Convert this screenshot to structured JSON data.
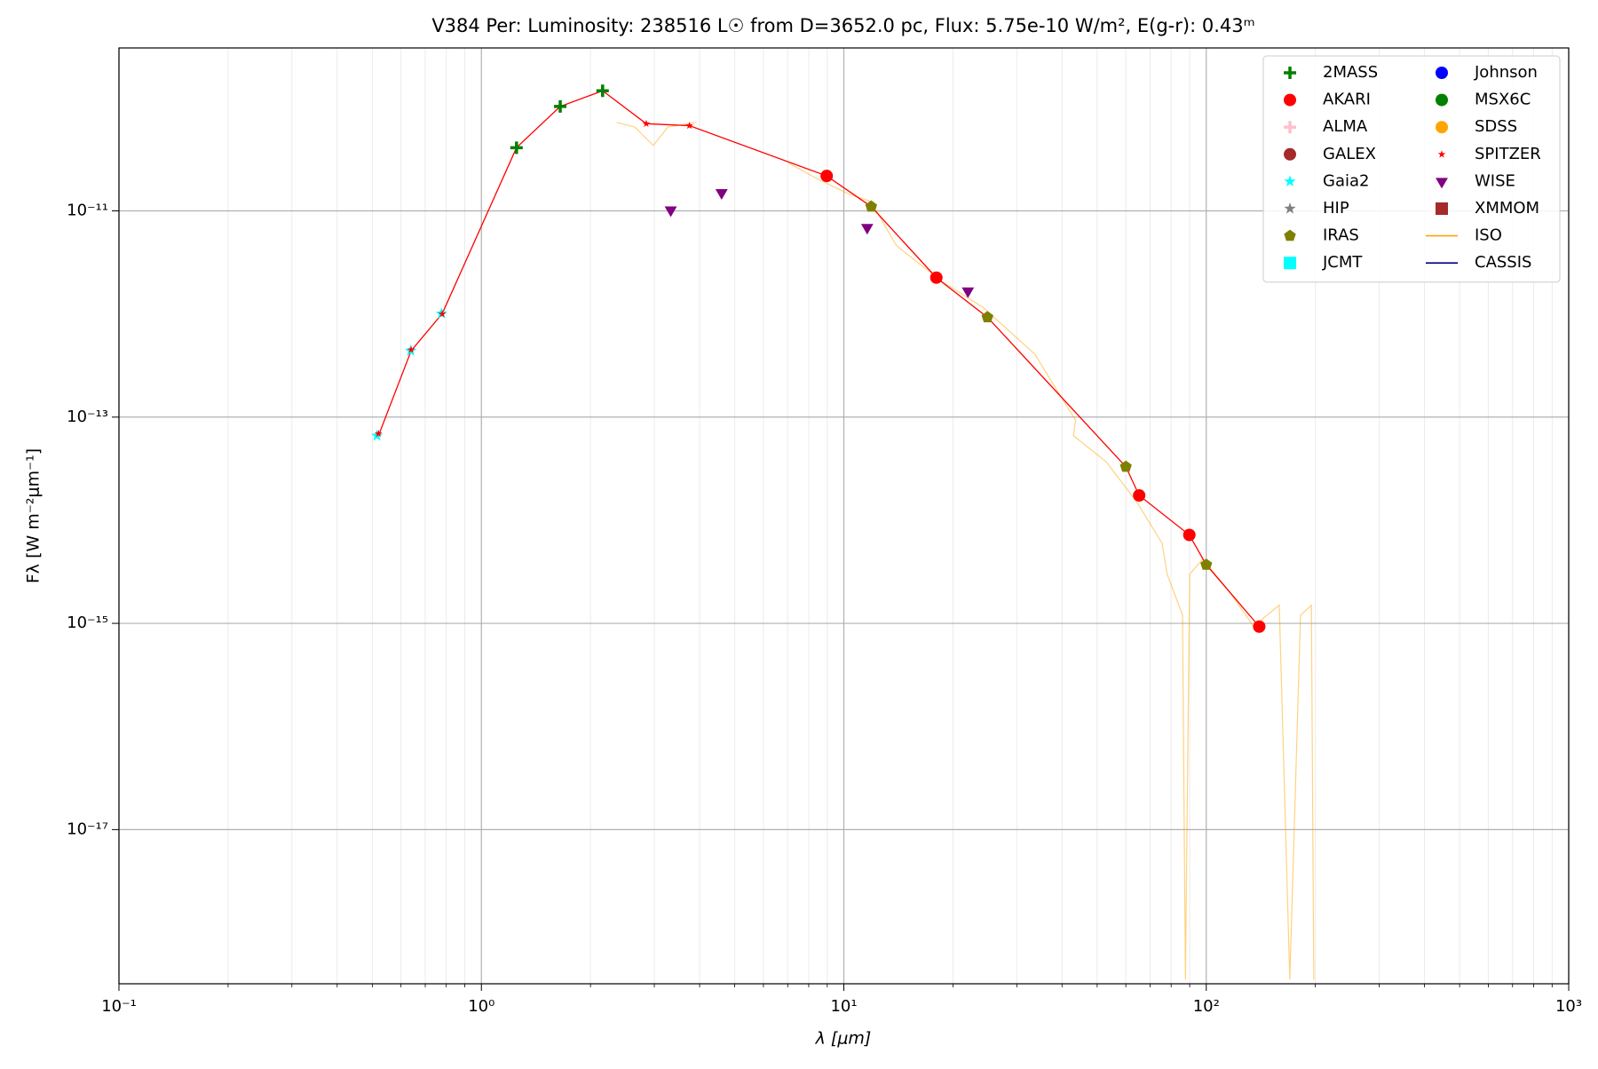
{
  "chart_data": {
    "type": "scatter",
    "title": "V384 Per:  Luminosity: 238516 L☉ from D=3652.0 pc, Flux: 5.75e-10 W/m², E(g-r): 0.43ᵐ",
    "x_label": "λ [μm]",
    "y_label": "Fλ [W m⁻²μm⁻¹]",
    "xscale": "log",
    "yscale": "log",
    "grid": true,
    "legend_position": "upper right",
    "legend_columns": 2,
    "xlim": [
      0.1,
      1000
    ],
    "ylim": [
      3.2e-19,
      3.8e-10
    ],
    "xticks": [
      {
        "value": 0.1,
        "label": "10⁻¹"
      },
      {
        "value": 1,
        "label": "10⁰"
      },
      {
        "value": 10,
        "label": "10¹"
      },
      {
        "value": 100,
        "label": "10²"
      },
      {
        "value": 1000,
        "label": "10³"
      }
    ],
    "xminorticks": [
      0.2,
      0.3,
      0.4,
      0.5,
      0.6,
      0.7,
      0.8,
      0.9,
      2,
      3,
      4,
      5,
      6,
      7,
      8,
      9,
      20,
      30,
      40,
      50,
      60,
      70,
      80,
      90,
      200,
      300,
      400,
      500,
      600,
      700,
      800,
      900
    ],
    "yticks": [
      {
        "value": 1e-17,
        "label": "10⁻¹⁷"
      },
      {
        "value": 1e-15,
        "label": "10⁻¹⁵"
      },
      {
        "value": 1e-13,
        "label": "10⁻¹³"
      },
      {
        "value": 1e-11,
        "label": "10⁻¹¹"
      }
    ],
    "model_line": {
      "color": "#ff0000",
      "x": [
        0.52,
        0.64,
        0.78,
        1.25,
        1.65,
        2.16,
        2.85,
        3.75,
        8.97,
        11.9,
        18,
        24.9,
        60,
        65.3,
        89.8,
        100,
        140
      ],
      "y": [
        6.6e-14,
        4.4e-13,
        1.01e-12,
        4.1e-11,
        1.03e-10,
        1.46e-10,
        7e-11,
        6.7e-11,
        2.18e-11,
        1.1e-11,
        2.25e-12,
        9.3e-13,
        3.3e-14,
        1.74e-14,
        7.2e-15,
        3.7e-15,
        9.3e-16
      ]
    },
    "series": [
      {
        "name": "2MASS",
        "color": "#008000",
        "marker": "plus",
        "x": [
          1.25,
          1.65,
          2.16
        ],
        "y": [
          4.1e-11,
          1.03e-10,
          1.46e-10
        ]
      },
      {
        "name": "AKARI",
        "color": "#ff0000",
        "marker": "circle",
        "x": [
          8.97,
          18,
          65.3,
          89.8,
          140
        ],
        "y": [
          2.18e-11,
          2.25e-12,
          1.74e-14,
          7.2e-15,
          9.3e-16
        ]
      },
      {
        "name": "ALMA",
        "color": "#ffc0cb",
        "marker": "plus",
        "x": [],
        "y": []
      },
      {
        "name": "GALEX",
        "color": "#a52a2a",
        "marker": "circle",
        "x": [],
        "y": []
      },
      {
        "name": "Gaia2",
        "color": "#00ffff",
        "marker": "star",
        "x": [
          0.515,
          0.638,
          0.776
        ],
        "y": [
          6.6e-14,
          4.4e-13,
          1.01e-12
        ]
      },
      {
        "name": "HIP",
        "color": "#808080",
        "marker": "star",
        "x": [],
        "y": []
      },
      {
        "name": "IRAS",
        "color": "#808000",
        "marker": "pentagon",
        "x": [
          11.9,
          24.9,
          60,
          100
        ],
        "y": [
          1.1e-11,
          9.3e-13,
          3.3e-14,
          3.7e-15
        ]
      },
      {
        "name": "JCMT",
        "color": "#00ffff",
        "marker": "square",
        "x": [],
        "y": []
      },
      {
        "name": "Johnson",
        "color": "#0000ff",
        "marker": "circle",
        "x": [],
        "y": []
      },
      {
        "name": "MSX6C",
        "color": "#008000",
        "marker": "circle",
        "x": [],
        "y": []
      },
      {
        "name": "SDSS",
        "color": "#ffa500",
        "marker": "circle",
        "x": [],
        "y": []
      },
      {
        "name": "SPITZER",
        "color": "#ff0000",
        "marker": "smallstar",
        "x": [
          0.52,
          0.64,
          0.78,
          2.85,
          3.75
        ],
        "y": [
          6.9e-14,
          4.5e-13,
          1e-12,
          7e-11,
          6.7e-11
        ]
      },
      {
        "name": "WISE",
        "color": "#800080",
        "marker": "tridown",
        "x": [
          3.33,
          4.6,
          11.6,
          22
        ],
        "y": [
          1.02e-11,
          1.5e-11,
          6.9e-12,
          1.67e-12
        ]
      },
      {
        "name": "XMMOM",
        "color": "#a52a2a",
        "marker": "square",
        "x": [],
        "y": []
      },
      {
        "name": "ISO",
        "color": "#ffa500",
        "marker": "line",
        "x": [
          2.36,
          2.65,
          2.98,
          3.27,
          3.92,
          null,
          7.05,
          8.55,
          10.4,
          11.9,
          13.96,
          18.7,
          24.2,
          33.6,
          43.6,
          43,
          52.9,
          64.3,
          75.5,
          78,
          86,
          87.6,
          90,
          97.8,
          115,
          135,
          159,
          170,
          182,
          195,
          198
        ],
        "y": [
          7.2e-11,
          6.5e-11,
          4.3e-11,
          6.5e-11,
          7.2e-11,
          null,
          2.9e-11,
          2e-11,
          1.44e-11,
          1.23e-11,
          4.6e-12,
          2.05e-12,
          1.16e-12,
          4.1e-13,
          9.3e-14,
          6.6e-14,
          3.7e-14,
          1.5e-14,
          6e-15,
          3e-15,
          1.2e-15,
          3.5e-19,
          3e-15,
          4.2e-15,
          2.1e-15,
          9.4e-16,
          1.5e-15,
          3.5e-19,
          1.2e-15,
          1.5e-15,
          3.5e-19
        ]
      },
      {
        "name": "CASSIS",
        "color": "#00008b",
        "marker": "line",
        "x": [],
        "y": []
      }
    ]
  }
}
